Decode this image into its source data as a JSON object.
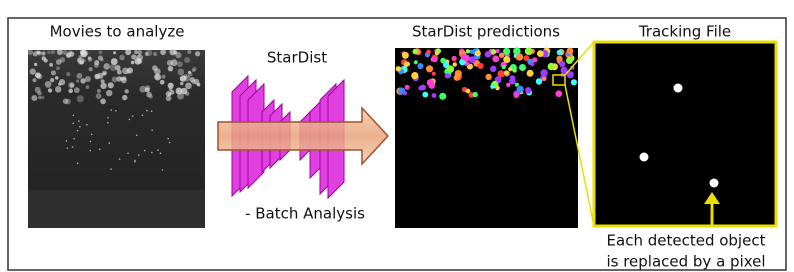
{
  "panels": {
    "movies": {
      "label": "Movies to analyze"
    },
    "stardist": {
      "label": "StarDist",
      "note": "- Batch Analysis"
    },
    "predictions": {
      "label": "StarDist predictions"
    },
    "tracking": {
      "label": "Tracking File",
      "caption": [
        "Each detected object",
        "is replaced by a pixel"
      ]
    }
  }
}
